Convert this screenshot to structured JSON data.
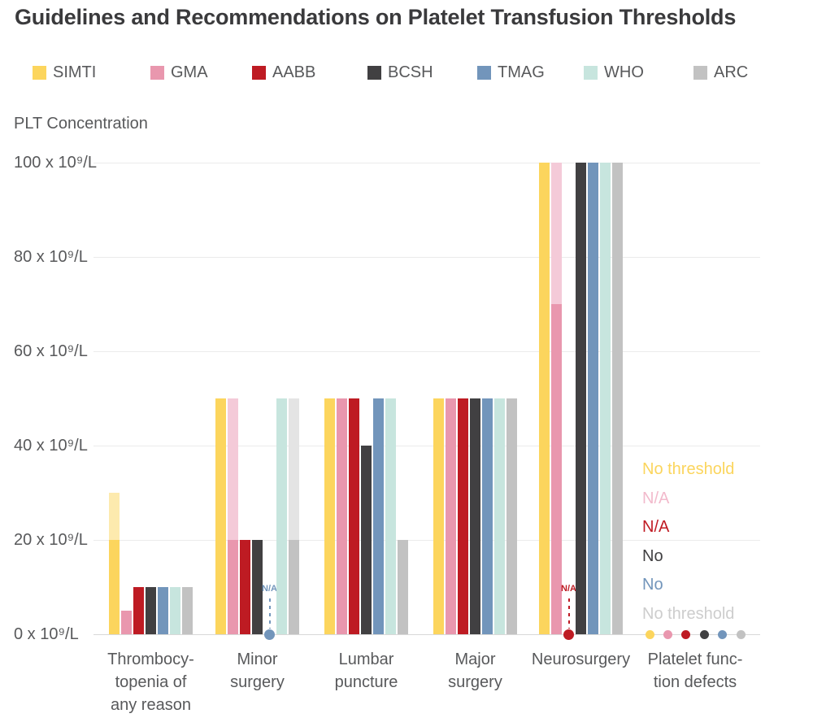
{
  "chart_data": {
    "type": "bar",
    "title": "Guidelines and Recommendations on Platelet Transfusion Thresholds",
    "ylabel": "PLT Concentration",
    "ylim": [
      0,
      100
    ],
    "yticks": [
      {
        "value": 100,
        "label": "100 x 10⁹/L"
      },
      {
        "value": 80,
        "label": "80 x 10⁹/L"
      },
      {
        "value": 60,
        "label": "60 x 10⁹/L"
      },
      {
        "value": 40,
        "label": "40 x 10⁹/L"
      },
      {
        "value": 20,
        "label": "20 x 10⁹/L"
      },
      {
        "value": 0,
        "label": "0 x 10⁹/L"
      }
    ],
    "grid": true,
    "legend_position": "top",
    "series": [
      {
        "name": "SIMTI",
        "color": "#FCD55D",
        "light_color": "#FDEAAE"
      },
      {
        "name": "GMA",
        "color": "#E997AE",
        "light_color": "#F4CAD8"
      },
      {
        "name": "AABB",
        "color": "#BE1B23"
      },
      {
        "name": "BCSH",
        "color": "#414042"
      },
      {
        "name": "TMAG",
        "color": "#7295BB"
      },
      {
        "name": "WHO",
        "color": "#C7E5DE"
      },
      {
        "name": "ARC",
        "color": "#C2C2C2",
        "light_color": "#E4E4E4"
      }
    ],
    "groups": [
      {
        "category_lines": [
          "Thrombocy-",
          "topenia of",
          "any reason"
        ],
        "bars": [
          {
            "series": "SIMTI",
            "value": 20,
            "range_to": 30
          },
          {
            "series": "GMA",
            "value": 5
          },
          {
            "series": "AABB",
            "value": 10
          },
          {
            "series": "BCSH",
            "value": 10
          },
          {
            "series": "TMAG",
            "value": 10
          },
          {
            "series": "WHO",
            "value": 10
          },
          {
            "series": "ARC",
            "value": 10
          }
        ]
      },
      {
        "category_lines": [
          "Minor",
          "surgery"
        ],
        "bars": [
          {
            "series": "SIMTI",
            "value": 50
          },
          {
            "series": "GMA",
            "value": 20,
            "range_to": 50
          },
          {
            "series": "AABB",
            "value": 20
          },
          {
            "series": "BCSH",
            "value": 20
          },
          {
            "series": "TMAG",
            "na": true,
            "na_label": "N/A"
          },
          {
            "series": "WHO",
            "value": 50
          },
          {
            "series": "ARC",
            "value": 20,
            "range_to": 50
          }
        ]
      },
      {
        "category_lines": [
          "Lumbar",
          "puncture"
        ],
        "bars": [
          {
            "series": "SIMTI",
            "value": 50
          },
          {
            "series": "GMA",
            "value": 50
          },
          {
            "series": "AABB",
            "value": 50
          },
          {
            "series": "BCSH",
            "value": 40
          },
          {
            "series": "TMAG",
            "value": 50
          },
          {
            "series": "WHO",
            "value": 50
          },
          {
            "series": "ARC",
            "value": 20
          }
        ]
      },
      {
        "category_lines": [
          "Major",
          "surgery"
        ],
        "bars": [
          {
            "series": "SIMTI",
            "value": 50
          },
          {
            "series": "GMA",
            "value": 50
          },
          {
            "series": "AABB",
            "value": 50
          },
          {
            "series": "BCSH",
            "value": 50
          },
          {
            "series": "TMAG",
            "value": 50
          },
          {
            "series": "WHO",
            "value": 50
          },
          {
            "series": "ARC",
            "value": 50
          }
        ]
      },
      {
        "category_lines": [
          "Neurosurgery"
        ],
        "bars": [
          {
            "series": "SIMTI",
            "value": 100
          },
          {
            "series": "GMA",
            "value": 70,
            "range_to": 100
          },
          {
            "series": "AABB",
            "na": true,
            "na_label": "N/A"
          },
          {
            "series": "BCSH",
            "value": 100
          },
          {
            "series": "TMAG",
            "value": 100
          },
          {
            "series": "WHO",
            "value": 100
          },
          {
            "series": "ARC",
            "value": 100
          }
        ]
      },
      {
        "category_lines": [
          "Platelet func-",
          "tion defects"
        ],
        "markers": [
          {
            "series": "SIMTI",
            "label": "No threshold",
            "label_color": "#FBD55D"
          },
          {
            "series": "GMA",
            "label": "N/A",
            "label_color": "#F2BACC"
          },
          {
            "series": "AABB",
            "label": "N/A",
            "label_color": "#C01B23"
          },
          {
            "series": "BCSH",
            "label": "No",
            "label_color": "#414042"
          },
          {
            "series": "TMAG",
            "label": "No",
            "label_color": "#7295BB"
          },
          {
            "series": "ARC",
            "label": "No threshold",
            "label_color": "#CDCDCD"
          }
        ]
      }
    ]
  }
}
